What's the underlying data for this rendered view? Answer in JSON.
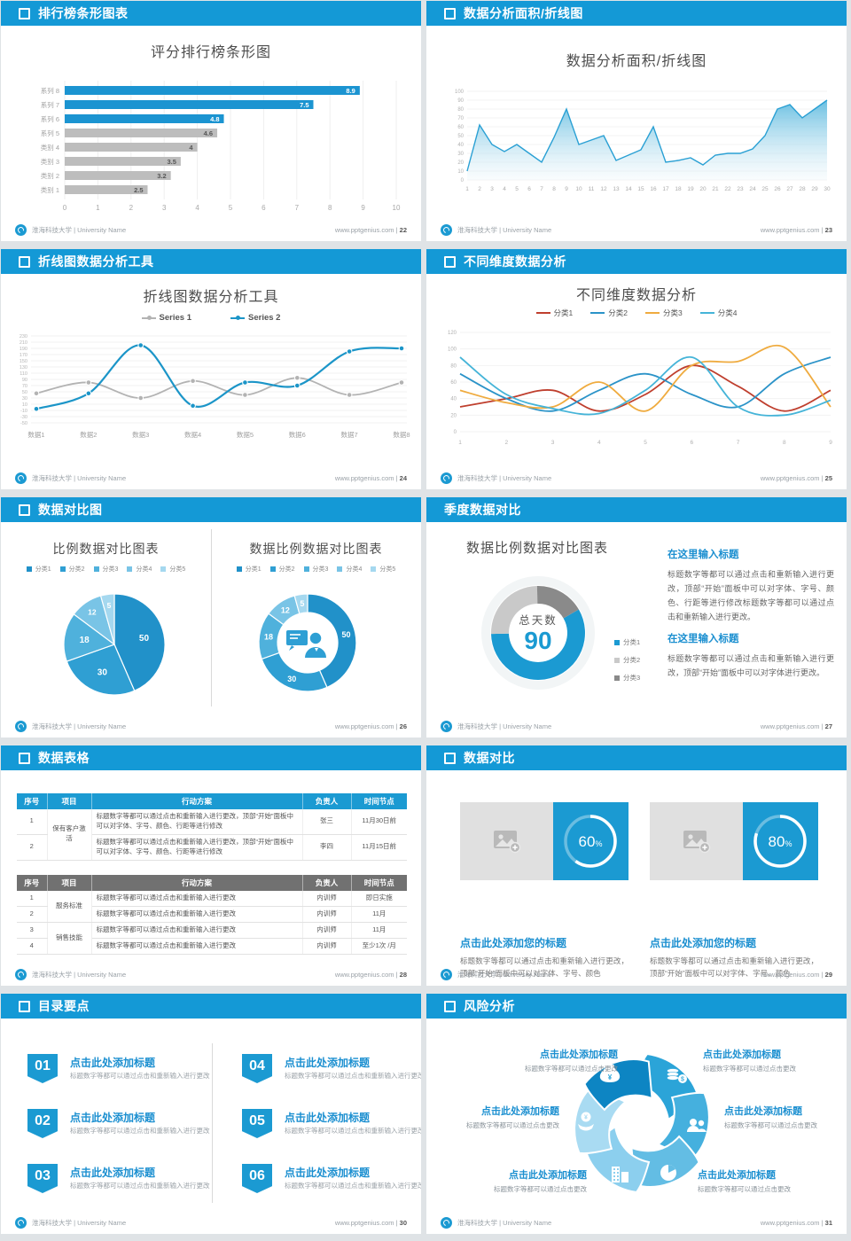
{
  "footer": {
    "org": "淮海科技大学 | University Name",
    "site": "www.pptgenius.com",
    "sep": "|"
  },
  "slides": {
    "s22": {
      "header": "排行榜条形图表",
      "page": "22",
      "title": "评分排行榜条形图"
    },
    "s23": {
      "header": "数据分析面积/折线图",
      "page": "23",
      "title": "数据分析面积/折线图"
    },
    "s24": {
      "header": "折线图数据分析工具",
      "page": "24",
      "title": "折线图数据分析工具"
    },
    "s25": {
      "header": "不同维度数据分析",
      "page": "25",
      "title": "不同维度数据分析"
    },
    "s26": {
      "header": "数据对比图",
      "page": "26",
      "title_left": "比例数据对比图表",
      "title_right": "数据比例数据对比图表"
    },
    "s27": {
      "header": "季度数据对比",
      "page": "27",
      "title": "数据比例数据对比图表",
      "center_label": "总天数",
      "center_value": "90",
      "legend": [
        "分类1",
        "分类2",
        "分类3"
      ],
      "blocks": [
        {
          "heading": "在这里输入标题",
          "body": "标题数字等都可以通过点击和重新输入进行更改，顶部“开始”面板中可以对字体、字号、颜色、行距等进行修改标题数字等都可以通过点击和重新输入进行更改。"
        },
        {
          "heading": "在这里输入标题",
          "body": "标题数字等都可以通过点击和重新输入进行更改，顶部“开始”面板中可以对字体进行更改。"
        }
      ]
    },
    "s28": {
      "header": "数据表格",
      "page": "28",
      "table1": {
        "theme": "blue",
        "headers": [
          "序号",
          "项目",
          "行动方案",
          "负责人",
          "时间节点"
        ],
        "groups": [
          {
            "project": "保有客户激活",
            "rows": [
              {
                "no": "1",
                "action": "标题数字等都可以通过点击和重新输入进行更改，顶部“开始”面板中可以对字体、字号、颜色、行距等进行修改",
                "owner": "张三",
                "time": "11月30日前"
              },
              {
                "no": "2",
                "action": "标题数字等都可以通过点击和重新输入进行更改，顶部“开始”面板中可以对字体、字号、颜色、行距等进行修改",
                "owner": "李四",
                "time": "11月15日前"
              }
            ]
          }
        ]
      },
      "table2": {
        "theme": "gray",
        "headers": [
          "序号",
          "项目",
          "行动方案",
          "负责人",
          "时间节点"
        ],
        "groups": [
          {
            "project": "服务标准",
            "rows": [
              {
                "no": "1",
                "action": "标题数字等都可以通过点击和重新输入进行更改",
                "owner": "内训师",
                "time": "即日实施"
              },
              {
                "no": "2",
                "action": "标题数字等都可以通过点击和重新输入进行更改",
                "owner": "内训师",
                "time": "11月"
              }
            ]
          },
          {
            "project": "销售技能",
            "rows": [
              {
                "no": "3",
                "action": "标题数字等都可以通过点击和重新输入进行更改",
                "owner": "内训师",
                "time": "11月"
              },
              {
                "no": "4",
                "action": "标题数字等都可以通过点击和重新输入进行更改",
                "owner": "内训师",
                "time": "至少1次 /月"
              }
            ]
          }
        ]
      }
    },
    "s29": {
      "header": "数据对比",
      "page": "29",
      "panels": [
        {
          "percent": "60",
          "unit": "%",
          "title": "点击此处添加您的标题",
          "body": "标题数字等都可以通过点击和重新输入进行更改，顶部“开始”面板中可以对字体、字号、颜色"
        },
        {
          "percent": "80",
          "unit": "%",
          "title": "点击此处添加您的标题",
          "body": "标题数字等都可以通过点击和重新输入进行更改，顶部“开始”面板中可以对字体、字号、颜色"
        }
      ]
    },
    "s30": {
      "header": "目录要点",
      "page": "30",
      "items": [
        {
          "num": "01",
          "title": "点击此处添加标题",
          "sub": "标题数字等都可以通过点击和重新输入进行更改"
        },
        {
          "num": "02",
          "title": "点击此处添加标题",
          "sub": "标题数字等都可以通过点击和重新输入进行更改"
        },
        {
          "num": "03",
          "title": "点击此处添加标题",
          "sub": "标题数字等都可以通过点击和重新输入进行更改"
        },
        {
          "num": "04",
          "title": "点击此处添加标题",
          "sub": "标题数字等都可以通过点击和重新输入进行更改"
        },
        {
          "num": "05",
          "title": "点击此处添加标题",
          "sub": "标题数字等都可以通过点击和重新输入进行更改"
        },
        {
          "num": "06",
          "title": "点击此处添加标题",
          "sub": "标题数字等都可以通过点击和重新输入进行更改"
        }
      ]
    },
    "s31": {
      "header": "风险分析",
      "page": "31",
      "items": [
        {
          "pos": "tl",
          "icon": "money-bag-icon",
          "title": "点击此处添加标题",
          "sub": "标题数字等都可以通过点击更改"
        },
        {
          "pos": "tr",
          "icon": "coins-icon",
          "title": "点击此处添加标题",
          "sub": "标题数字等都可以通过点击更改"
        },
        {
          "pos": "ml",
          "icon": "hand-coin-icon",
          "title": "点击此处添加标题",
          "sub": "标题数字等都可以通过点击更改"
        },
        {
          "pos": "mr",
          "icon": "users-icon",
          "title": "点击此处添加标题",
          "sub": "标题数字等都可以通过点击更改"
        },
        {
          "pos": "bl",
          "icon": "building-icon",
          "title": "点击此处添加标题",
          "sub": "标题数字等都可以通过点击更改"
        },
        {
          "pos": "br",
          "icon": "pie-chart-icon",
          "title": "点击此处添加标题",
          "sub": "标题数字等都可以通过点击更改"
        }
      ]
    }
  },
  "chart_data": [
    {
      "slide": 22,
      "type": "bar",
      "orientation": "horizontal",
      "title": "评分排行榜条形图",
      "categories": [
        "系列 8",
        "系列 7",
        "系列 6",
        "系列 5",
        "类别 4",
        "类别 3",
        "类别 2",
        "类别 1"
      ],
      "values": [
        8.9,
        7.5,
        4.8,
        4.6,
        4,
        3.5,
        3.2,
        2.5
      ],
      "bar_colors": [
        "#1b94d1",
        "#1b94d1",
        "#1b94d1",
        "#bdbdbd",
        "#bdbdbd",
        "#bdbdbd",
        "#bdbdbd",
        "#bdbdbd"
      ],
      "xlim": [
        0,
        10
      ],
      "xtick_step": 1,
      "grid": true,
      "value_labels": true
    },
    {
      "slide": 23,
      "type": "area",
      "title": "数据分析面积/折线图",
      "x": [
        1,
        2,
        3,
        4,
        5,
        6,
        7,
        8,
        9,
        10,
        11,
        12,
        13,
        14,
        15,
        16,
        17,
        18,
        19,
        20,
        21,
        22,
        23,
        24,
        25,
        26,
        27,
        28,
        29,
        30
      ],
      "values": [
        10,
        62,
        40,
        32,
        40,
        30,
        20,
        48,
        80,
        40,
        45,
        50,
        22,
        28,
        34,
        60,
        20,
        22,
        25,
        17,
        28,
        30,
        30,
        35,
        50,
        80,
        85,
        70,
        80,
        90
      ],
      "ylim": [
        0,
        100
      ],
      "ytick_step": 10,
      "color": "#2aa0d4",
      "fill": "gradient-blue"
    },
    {
      "slide": 24,
      "type": "line",
      "smooth": true,
      "title": "折线图数据分析工具",
      "categories": [
        "数据1",
        "数据2",
        "数据3",
        "数据4",
        "数据5",
        "数据6",
        "数据7",
        "数据8"
      ],
      "series": [
        {
          "name": "Series 1",
          "color": "#b3b3b3",
          "values": [
            45,
            80,
            30,
            85,
            40,
            95,
            40,
            80
          ]
        },
        {
          "name": "Series 2",
          "color": "#1b95c8",
          "values": [
            -5,
            45,
            200,
            5,
            80,
            70,
            180,
            190
          ]
        }
      ],
      "ylim": [
        -50,
        230
      ],
      "ytick_step": 20,
      "legend_position": "top",
      "markers": true
    },
    {
      "slide": 25,
      "type": "line",
      "smooth": true,
      "title": "不同维度数据分析",
      "x": [
        1,
        2,
        3,
        4,
        5,
        6,
        7,
        8,
        9
      ],
      "series": [
        {
          "name": "分类1",
          "color": "#bf3f2e",
          "values": [
            30,
            40,
            50,
            25,
            45,
            80,
            55,
            25,
            50
          ]
        },
        {
          "name": "分类2",
          "color": "#2b93c8",
          "values": [
            70,
            40,
            25,
            50,
            70,
            45,
            30,
            70,
            90
          ]
        },
        {
          "name": "分类3",
          "color": "#efab3f",
          "values": [
            50,
            35,
            30,
            60,
            25,
            80,
            85,
            102,
            30
          ]
        },
        {
          "name": "分类4",
          "color": "#45b4d8",
          "values": [
            90,
            45,
            28,
            22,
            50,
            90,
            30,
            20,
            38
          ]
        }
      ],
      "ylim": [
        0,
        120
      ],
      "ytick_step": 20,
      "legend_position": "top",
      "markers": false
    },
    {
      "slide": 26,
      "type": "pie",
      "title": "比例数据对比图表",
      "labels": [
        "分类1",
        "分类2",
        "分类3",
        "分类4",
        "分类5"
      ],
      "values": [
        50,
        30,
        18,
        12,
        5
      ],
      "colors": [
        "#2191c9",
        "#2f9fd3",
        "#4fb1dc",
        "#79c4e6",
        "#a5d8ef"
      ]
    },
    {
      "slide": 26,
      "type": "donut",
      "title": "数据比例数据对比图表",
      "labels": [
        "分类1",
        "分类2",
        "分类3",
        "分类4",
        "分类5"
      ],
      "values": [
        50,
        30,
        18,
        12,
        5
      ],
      "colors": [
        "#2191c9",
        "#2f9fd3",
        "#4fb1dc",
        "#79c4e6",
        "#a5d8ef"
      ],
      "center_icon": "presenter-icon"
    },
    {
      "slide": 27,
      "type": "donut",
      "title": "数据比例数据对比图表",
      "labels": [
        "分类1",
        "分类2",
        "分类3"
      ],
      "values": [
        58,
        25,
        17
      ],
      "colors": [
        "#1b9ad2",
        "#c9c9c9",
        "#8a8a8a"
      ],
      "start_angle": 60,
      "center_label": "总天数",
      "center_value": 90
    },
    {
      "slide": 29,
      "type": "progress",
      "values": [
        60,
        80
      ],
      "unit": "%",
      "ring_color": "#ffffff",
      "bg_color": "#1b9ad2"
    }
  ]
}
